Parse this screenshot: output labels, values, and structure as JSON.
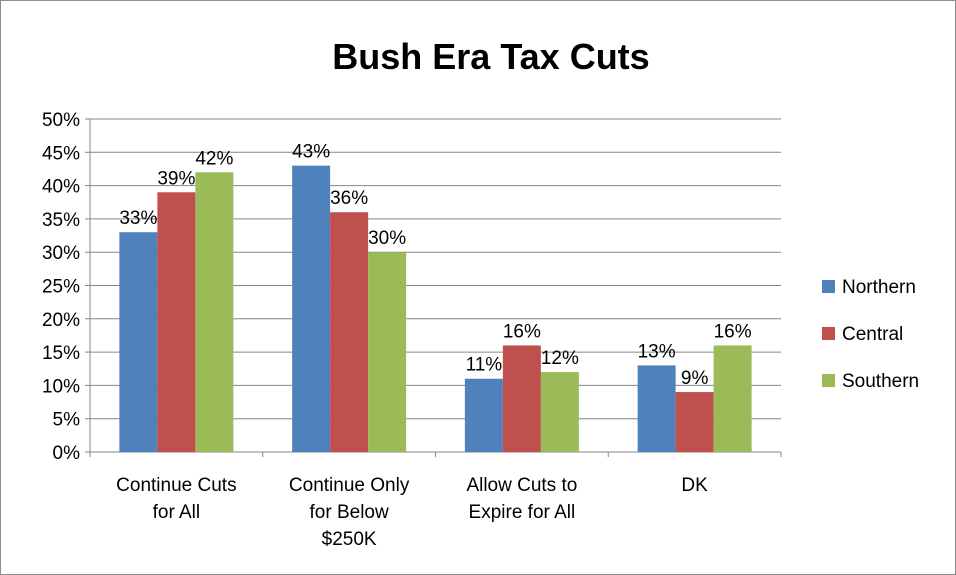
{
  "chart_data": {
    "type": "bar",
    "title": "Bush Era Tax Cuts",
    "categories": [
      [
        "Continue Cuts",
        "for All"
      ],
      [
        "Continue Only",
        "for Below",
        "$250K"
      ],
      [
        "Allow Cuts to",
        "Expire for All"
      ],
      [
        "DK"
      ]
    ],
    "series": [
      {
        "name": "Northern",
        "color": "#4f81bd",
        "values": [
          33,
          43,
          11,
          13
        ],
        "labels": [
          "33%",
          "43%",
          "11%",
          "13%"
        ]
      },
      {
        "name": "Central",
        "color": "#c0504d",
        "values": [
          39,
          36,
          16,
          9
        ],
        "labels": [
          "39%",
          "36%",
          "16%",
          "9%"
        ]
      },
      {
        "name": "Southern",
        "color": "#9bbb59",
        "values": [
          42,
          30,
          12,
          16
        ],
        "labels": [
          "42%",
          "30%",
          "12%",
          "16%"
        ]
      }
    ],
    "yticks": [
      "0%",
      "5%",
      "10%",
      "15%",
      "20%",
      "25%",
      "30%",
      "35%",
      "40%",
      "45%",
      "50%"
    ],
    "ylim": [
      0,
      50
    ],
    "ytick_step": 5,
    "grid": true,
    "legend_position": "right",
    "xlabel": "",
    "ylabel": ""
  }
}
